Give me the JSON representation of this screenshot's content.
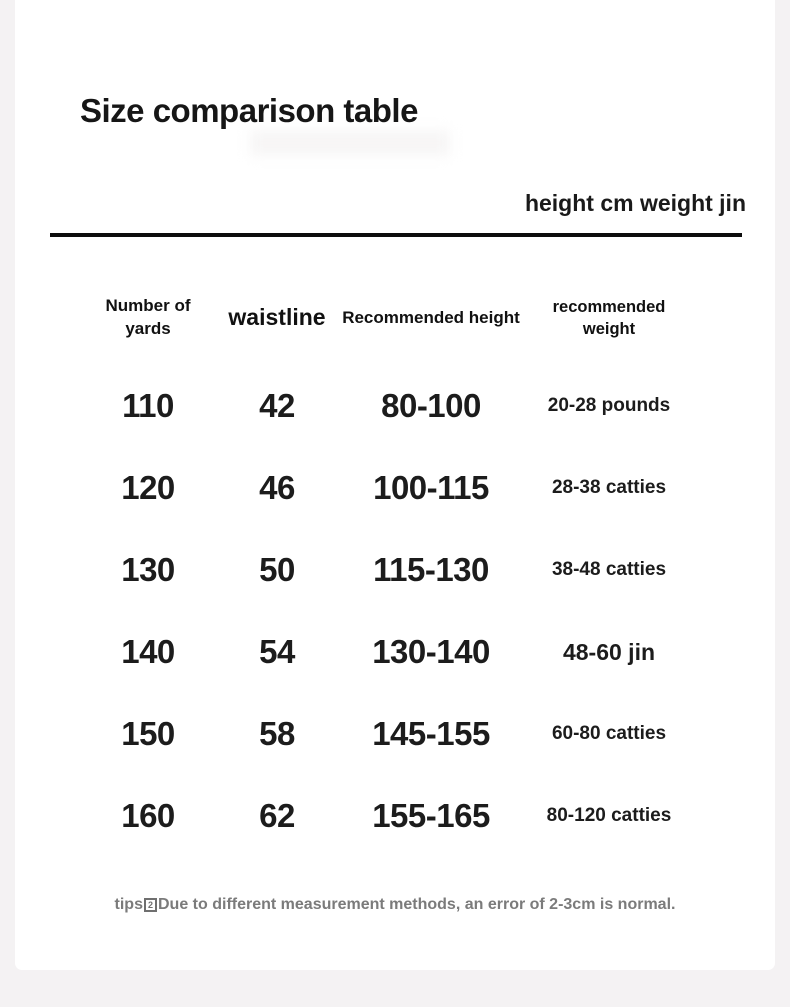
{
  "colors": {
    "page_background": "#f4f2f3",
    "card_background": "#ffffff",
    "text": "#1a1a1a",
    "muted_text": "#7b7b7b",
    "divider": "#0d0d0d"
  },
  "title": "Size comparison table",
  "units_note": "height cm weight jin",
  "table": {
    "headers": [
      "Number of yards",
      "waistline",
      "Recommended height",
      "recommended weight"
    ],
    "rows": [
      {
        "size": "110",
        "waist": "42",
        "height": "80-100",
        "weight": "20-28 pounds"
      },
      {
        "size": "120",
        "waist": "46",
        "height": "100-115",
        "weight": "28-38 catties"
      },
      {
        "size": "130",
        "waist": "50",
        "height": "115-130",
        "weight": "38-48 catties"
      },
      {
        "size": "140",
        "waist": "54",
        "height": "130-140",
        "weight": "48-60 jin"
      },
      {
        "size": "150",
        "waist": "58",
        "height": "145-155",
        "weight": "60-80 catties"
      },
      {
        "size": "160",
        "waist": "62",
        "height": "155-165",
        "weight": "80-120 catties"
      }
    ]
  },
  "tips": {
    "prefix": "tips",
    "tofu_text": "2",
    "text": "Due to different measurement methods, an error of 2-3cm is normal."
  }
}
